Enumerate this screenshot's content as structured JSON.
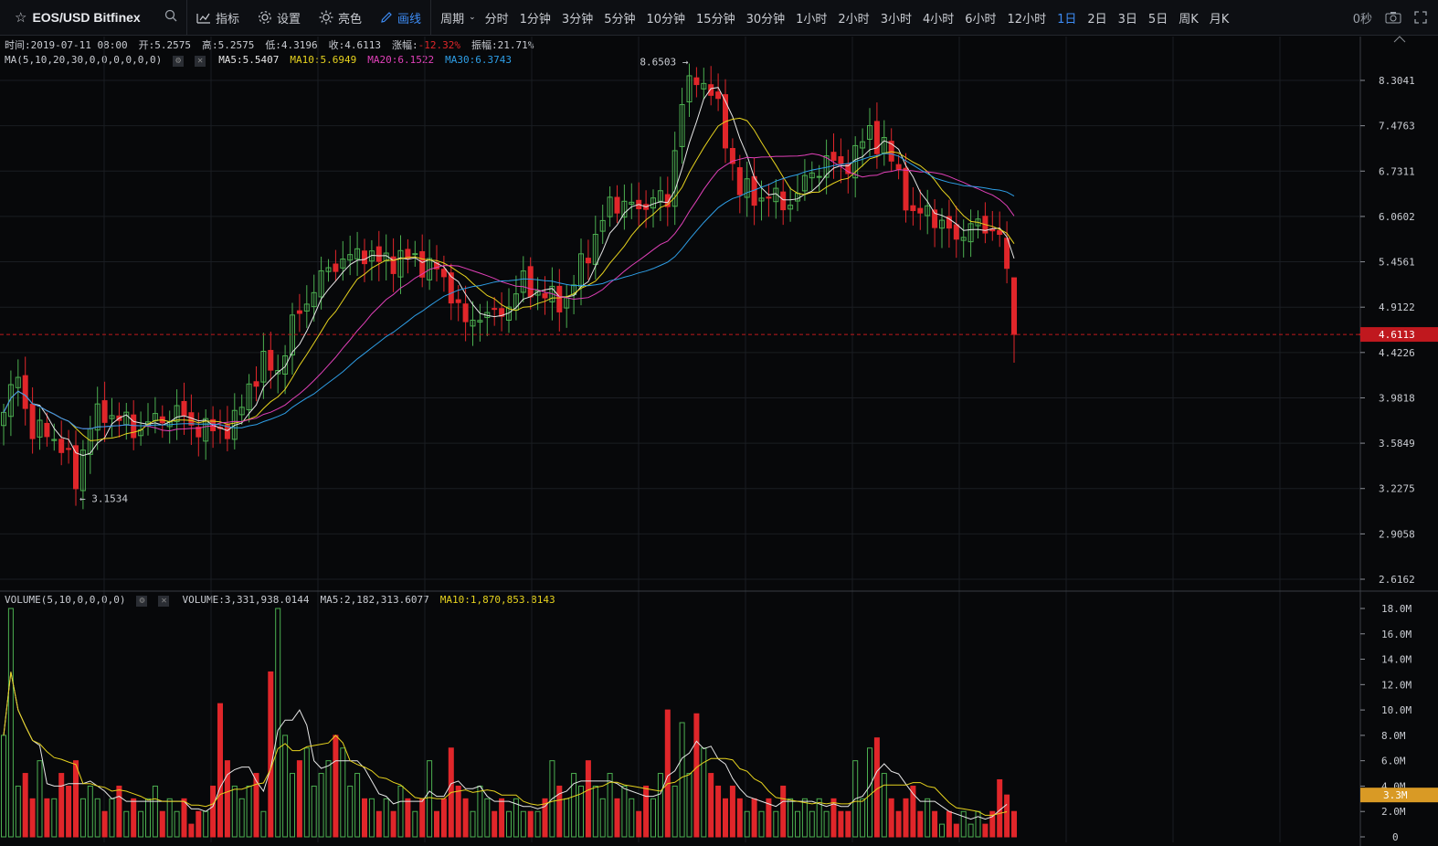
{
  "toolbar": {
    "symbol": "EOS/USD Bitfinex",
    "tools": [
      {
        "label": "指标",
        "icon": "indicator-icon"
      },
      {
        "label": "设置",
        "icon": "gear-icon"
      },
      {
        "label": "亮色",
        "icon": "sun-icon"
      },
      {
        "label": "画线",
        "icon": "pencil-icon",
        "active": true
      }
    ],
    "period_label": "周期",
    "periods": [
      "分时",
      "1分钟",
      "3分钟",
      "5分钟",
      "10分钟",
      "15分钟",
      "30分钟",
      "1小时",
      "2小时",
      "3小时",
      "4小时",
      "6小时",
      "12小时",
      "1日",
      "2日",
      "3日",
      "5日",
      "周K",
      "月K"
    ],
    "active_period": "1日",
    "countdown": "0秒"
  },
  "info": {
    "time": "时间:2019-07-11 08:00",
    "open": "开:5.2575",
    "high": "高:5.2575",
    "low": "低:4.3196",
    "close": "收:4.6113",
    "change_label": "涨幅:",
    "change_value": "-12.32%",
    "amplitude": "振幅:21.71%"
  },
  "ma_legend": {
    "title": "MA(5,10,20,30,0,0,0,0,0,0)",
    "ma5": "MA5:5.5407",
    "ma10": "MA10:5.6949",
    "ma20": "MA20:6.1522",
    "ma30": "MA30:6.3743"
  },
  "vol_legend": {
    "title": "VOLUME(5,10,0,0,0,0)",
    "volume": "VOLUME:3,331,938.0144",
    "ma5": "MA5:2,182,313.6077",
    "ma10": "MA10:1,870,853.8143"
  },
  "colors": {
    "up": "#4caf50",
    "down": "#e0262a",
    "ma5": "#e6e6e6",
    "ma10": "#e6d21e",
    "ma20": "#e040b8",
    "ma30": "#2e9ee6",
    "price_marker": "#c0181e",
    "vol_marker": "#d99a25"
  },
  "chart_data": {
    "type": "candlestick",
    "price_axis": {
      "ticks": [
        8.3041,
        7.4763,
        6.7311,
        6.0602,
        5.4561,
        4.9122,
        4.4226,
        3.9818,
        3.5849,
        3.2275,
        2.9058,
        2.6162
      ],
      "scale": "log"
    },
    "volume_axis": {
      "ticks": [
        "18.0M",
        "16.0M",
        "14.0M",
        "12.0M",
        "10.0M",
        "8.0M",
        "6.0M",
        "4.0M",
        "2.0M",
        "0"
      ],
      "range": [
        0,
        18000000
      ]
    },
    "last_price": "4.6113",
    "last_volume": "3.3M",
    "annotations": [
      {
        "text": "8.6503 →",
        "value": 8.6503
      },
      {
        "text": "← 3.1534",
        "value": 3.1534
      }
    ],
    "waypoints": [
      [
        0,
        3.85
      ],
      [
        2,
        4.2
      ],
      [
        4,
        3.65
      ],
      [
        6,
        3.7
      ],
      [
        8,
        3.55
      ],
      [
        10,
        3.3
      ],
      [
        12,
        3.75
      ],
      [
        14,
        3.85
      ],
      [
        16,
        3.8
      ],
      [
        18,
        3.7
      ],
      [
        20,
        3.75
      ],
      [
        22,
        3.8
      ],
      [
        24,
        3.85
      ],
      [
        26,
        3.75
      ],
      [
        28,
        3.7
      ],
      [
        30,
        3.7
      ],
      [
        32,
        3.75
      ],
      [
        34,
        4.1
      ],
      [
        36,
        4.3
      ],
      [
        38,
        4.25
      ],
      [
        40,
        4.7
      ],
      [
        42,
        5.0
      ],
      [
        44,
        5.25
      ],
      [
        46,
        5.45
      ],
      [
        48,
        5.5
      ],
      [
        50,
        5.6
      ],
      [
        52,
        5.45
      ],
      [
        54,
        5.5
      ],
      [
        56,
        5.5
      ],
      [
        58,
        5.45
      ],
      [
        60,
        5.35
      ],
      [
        62,
        5.1
      ],
      [
        64,
        4.7
      ],
      [
        66,
        4.85
      ],
      [
        68,
        4.8
      ],
      [
        70,
        4.95
      ],
      [
        72,
        5.2
      ],
      [
        74,
        5.1
      ],
      [
        76,
        5.0
      ],
      [
        78,
        5.0
      ],
      [
        80,
        5.4
      ],
      [
        82,
        5.8
      ],
      [
        84,
        6.2
      ],
      [
        86,
        6.3
      ],
      [
        88,
        6.1
      ],
      [
        90,
        6.4
      ],
      [
        92,
        6.2
      ],
      [
        94,
        8.0
      ],
      [
        96,
        8.3
      ],
      [
        98,
        8.2
      ],
      [
        100,
        7.2
      ],
      [
        102,
        6.5
      ],
      [
        104,
        6.3
      ],
      [
        106,
        6.4
      ],
      [
        108,
        6.2
      ],
      [
        110,
        6.4
      ],
      [
        112,
        6.7
      ],
      [
        114,
        6.9
      ],
      [
        116,
        6.8
      ],
      [
        118,
        7.0
      ],
      [
        120,
        7.4
      ],
      [
        122,
        7.1
      ],
      [
        124,
        6.7
      ],
      [
        126,
        6.0
      ],
      [
        128,
        6.2
      ],
      [
        130,
        5.9
      ],
      [
        132,
        5.8
      ],
      [
        134,
        5.9
      ],
      [
        136,
        5.95
      ],
      [
        138,
        5.8
      ],
      [
        139,
        5.25
      ],
      [
        140,
        4.61
      ]
    ],
    "volume_series": [
      8.0,
      18.0,
      4.0,
      5.0,
      3.0,
      6.0,
      3.0,
      3.0,
      5.0,
      4.0,
      6.0,
      3.0,
      4.0,
      3.0,
      2.0,
      3.0,
      4.0,
      2.0,
      3.0,
      2.0,
      3.0,
      4.0,
      2.0,
      3.0,
      2.0,
      3.0,
      1.0,
      2.0,
      2.0,
      4.0,
      10.5,
      6.0,
      4.0,
      3.0,
      4.0,
      5.0,
      2.0,
      13.0,
      18.0,
      8.0,
      5.0,
      6.0,
      7.0,
      4.0,
      5.0,
      6.0,
      8.0,
      7.0,
      4.0,
      5.0,
      3.0,
      3.0,
      2.0,
      3.0,
      2.0,
      4.0,
      3.0,
      2.0,
      3.0,
      6.0,
      2.0,
      3.0,
      7.0,
      4.0,
      3.0,
      2.0,
      4.0,
      3.0,
      2.0,
      3.0,
      2.0,
      3.0,
      2.0,
      2.0,
      2.0,
      3.0,
      6.0,
      4.0,
      3.0,
      5.0,
      4.0,
      6.0,
      4.0,
      3.0,
      5.0,
      3.0,
      4.0,
      3.0,
      2.0,
      4.0,
      3.0,
      5.0,
      10.0,
      4.0,
      9.0,
      5.0,
      9.7,
      7.0,
      5.0,
      4.0,
      3.0,
      4.0,
      3.0,
      2.0,
      3.0,
      2.0,
      3.0,
      2.0,
      4.0,
      3.0,
      2.0,
      3.0,
      2.0,
      3.0,
      2.0,
      3.0,
      2.0,
      2.0,
      6.0,
      3.0,
      7.0,
      7.8,
      5.0,
      3.0,
      2.0,
      3.0,
      4.0,
      2.0,
      3.0,
      2.0,
      1.0,
      2.0,
      1.0,
      2.0,
      1.0,
      2.0,
      1.0,
      2.0,
      4.5,
      3.3
    ]
  }
}
